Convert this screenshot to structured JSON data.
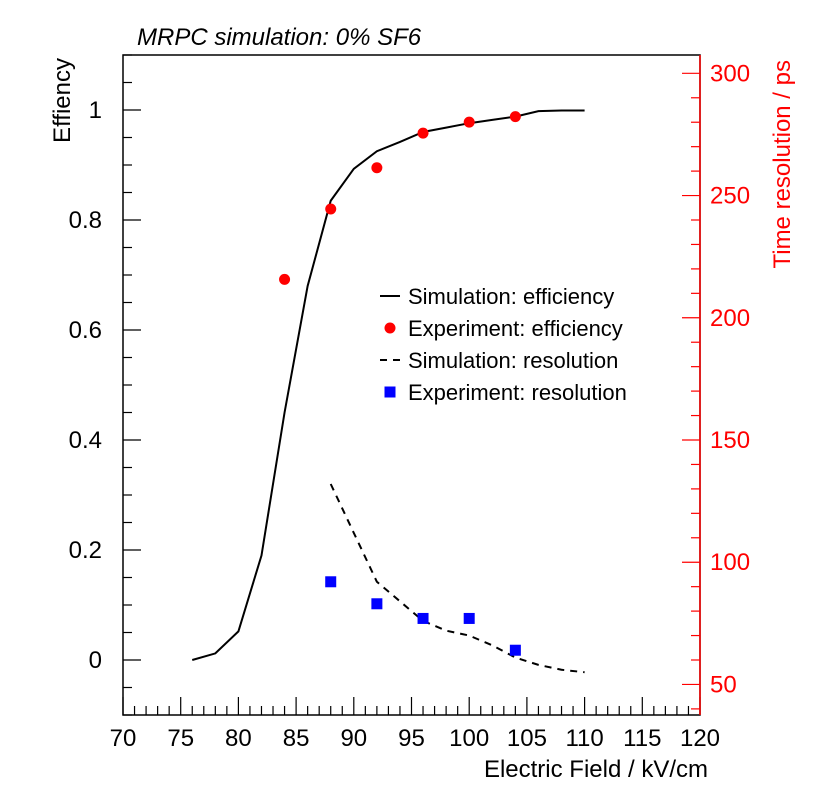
{
  "chart_data": {
    "type": "line",
    "title": "MRPC simulation: 0% SF6",
    "xlabel": "Electric Field / kV/cm",
    "ylabel": "Effiency",
    "y2label": "Time resolution / ps",
    "xlim": [
      70,
      120
    ],
    "ylim": [
      -0.1,
      1.1
    ],
    "y2lim": [
      37.5,
      307.5
    ],
    "xticks": [
      "70",
      "75",
      "80",
      "85",
      "90",
      "95",
      "100",
      "105",
      "110",
      "115",
      "120"
    ],
    "yticks": [
      "0",
      "0.2",
      "0.4",
      "0.6",
      "0.8",
      "1"
    ],
    "y2ticks": [
      "50",
      "100",
      "150",
      "200",
      "250",
      "300"
    ],
    "colors": {
      "axis": "#000000",
      "right_axis": "#ff0000",
      "experiment_eff": "#ff0000",
      "experiment_res": "#0000ff",
      "line": "#000000"
    },
    "legend": [
      {
        "label": "Simulation: efficiency",
        "style": "solid-line"
      },
      {
        "label": "Experiment: efficiency",
        "style": "red-circle"
      },
      {
        "label": "Simulation: resolution",
        "style": "dashed-line"
      },
      {
        "label": "Experiment: resolution",
        "style": "blue-square"
      }
    ],
    "series": [
      {
        "name": "Simulation: efficiency",
        "axis": "left",
        "x": [
          76,
          78,
          80,
          82,
          84,
          86,
          88,
          90,
          92,
          94,
          96,
          98,
          100,
          102,
          104,
          106,
          108,
          110
        ],
        "values": [
          0.0,
          0.012,
          0.052,
          0.19,
          0.45,
          0.68,
          0.835,
          0.893,
          0.925,
          0.942,
          0.96,
          0.968,
          0.976,
          0.982,
          0.988,
          0.998,
          0.999,
          0.999
        ]
      },
      {
        "name": "Experiment: efficiency",
        "axis": "left",
        "x": [
          84,
          88,
          92,
          96,
          100,
          104
        ],
        "values": [
          0.692,
          0.82,
          0.895,
          0.958,
          0.978,
          0.988
        ]
      },
      {
        "name": "Simulation: resolution",
        "axis": "right",
        "x": [
          88,
          90,
          92,
          94,
          96,
          98,
          100,
          102,
          104,
          106,
          108,
          110
        ],
        "values": [
          132,
          112,
          92,
          84,
          76,
          72,
          70,
          66,
          61,
          58,
          56,
          55
        ]
      },
      {
        "name": "Experiment: resolution",
        "axis": "right",
        "x": [
          88,
          92,
          96,
          100,
          104
        ],
        "values": [
          92,
          83,
          77,
          77,
          64
        ]
      }
    ]
  }
}
